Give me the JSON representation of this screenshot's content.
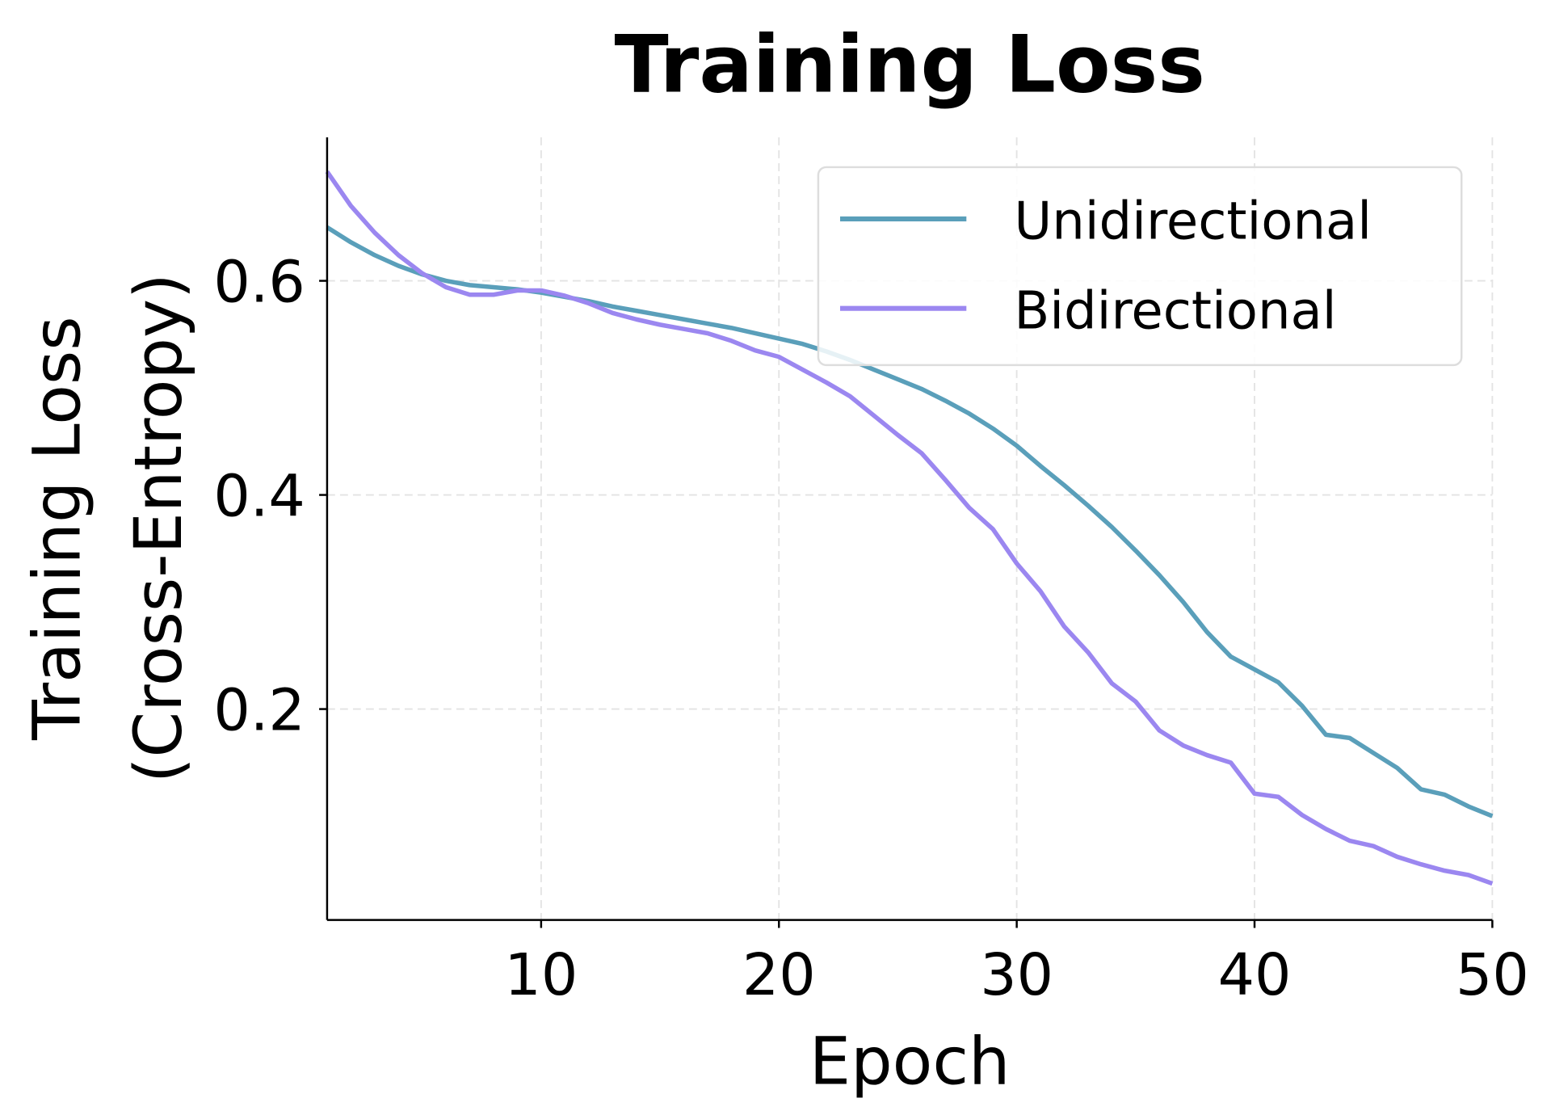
{
  "chart_data": {
    "type": "line",
    "title": "Training Loss",
    "xlabel": "Epoch",
    "ylabel": "Training Loss\n(Cross-Entropy)",
    "ylabel_lines": [
      "Training Loss",
      "(Cross-Entropy)"
    ],
    "xlim": [
      1,
      50
    ],
    "ylim": [
      0.003,
      0.734
    ],
    "xticks": [
      10,
      20,
      30,
      40,
      50
    ],
    "yticks": [
      0.2,
      0.4,
      0.6
    ],
    "xtick_labels": [
      "10",
      "20",
      "30",
      "40",
      "50"
    ],
    "ytick_labels": [
      "0.2",
      "0.4",
      "0.6"
    ],
    "grid": true,
    "legend_position": "top-right",
    "x": [
      1,
      2,
      3,
      4,
      5,
      6,
      7,
      8,
      9,
      10,
      11,
      12,
      13,
      14,
      15,
      16,
      17,
      18,
      19,
      20,
      21,
      22,
      23,
      24,
      25,
      26,
      27,
      28,
      29,
      30,
      31,
      32,
      33,
      34,
      35,
      36,
      37,
      38,
      39,
      40,
      41,
      42,
      43,
      44,
      45,
      46,
      47,
      48,
      49,
      50
    ],
    "series": [
      {
        "name": "Unidirectional",
        "color": "#5a9fba",
        "values": [
          0.65,
          0.636,
          0.624,
          0.614,
          0.606,
          0.6,
          0.596,
          0.594,
          0.592,
          0.589,
          0.585,
          0.581,
          0.576,
          0.572,
          0.568,
          0.564,
          0.56,
          0.556,
          0.551,
          0.546,
          0.541,
          0.534,
          0.526,
          0.517,
          0.508,
          0.499,
          0.488,
          0.476,
          0.462,
          0.446,
          0.427,
          0.409,
          0.39,
          0.37,
          0.348,
          0.325,
          0.3,
          0.272,
          0.249,
          0.237,
          0.225,
          0.203,
          0.176,
          0.173,
          0.159,
          0.145,
          0.125,
          0.12,
          0.109,
          0.1
        ]
      },
      {
        "name": "Bidirectional",
        "color": "#9b87f0",
        "values": [
          0.702,
          0.67,
          0.645,
          0.624,
          0.607,
          0.594,
          0.587,
          0.587,
          0.591,
          0.591,
          0.586,
          0.579,
          0.57,
          0.564,
          0.559,
          0.555,
          0.551,
          0.544,
          0.535,
          0.529,
          0.517,
          0.505,
          0.492,
          0.474,
          0.456,
          0.439,
          0.414,
          0.388,
          0.368,
          0.336,
          0.31,
          0.277,
          0.253,
          0.224,
          0.207,
          0.18,
          0.166,
          0.157,
          0.15,
          0.121,
          0.118,
          0.101,
          0.088,
          0.077,
          0.072,
          0.062,
          0.055,
          0.049,
          0.045,
          0.037
        ]
      }
    ]
  }
}
